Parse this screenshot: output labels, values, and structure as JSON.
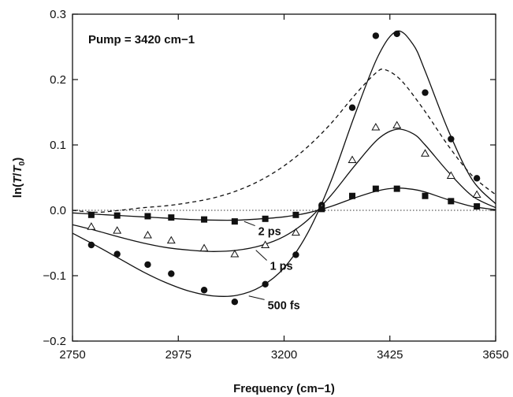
{
  "chart_data": {
    "type": "scatter",
    "xlabel": "Frequency (cm−1)",
    "ylabel_parts": [
      "ln(",
      "T",
      "/",
      "T",
      "0",
      ")"
    ],
    "xlim": [
      2750,
      3650
    ],
    "ylim": [
      -0.2,
      0.3
    ],
    "x_ticks": [
      2750,
      2975,
      3200,
      3425,
      3650
    ],
    "y_ticks": [
      -0.2,
      -0.1,
      0.0,
      0.1,
      0.2,
      0.3
    ],
    "y_tick_labels": [
      "−0.2",
      "−0.1",
      "0.0",
      "0.1",
      "0.2",
      "0.3"
    ],
    "annotation_pump": "Pump = 3420 cm−1",
    "zero_line": true,
    "series": [
      {
        "name": "500 fs",
        "marker": "circle",
        "points": [
          [
            2790,
            -0.053
          ],
          [
            2845,
            -0.067
          ],
          [
            2910,
            -0.083
          ],
          [
            2960,
            -0.097
          ],
          [
            3030,
            -0.122
          ],
          [
            3095,
            -0.14
          ],
          [
            3160,
            -0.113
          ],
          [
            3225,
            -0.068
          ],
          [
            3280,
            0.008
          ],
          [
            3345,
            0.157
          ],
          [
            3395,
            0.267
          ],
          [
            3440,
            0.27
          ],
          [
            3500,
            0.18
          ],
          [
            3555,
            0.109
          ],
          [
            3610,
            0.049
          ]
        ],
        "fit": [
          [
            2750,
            -0.035
          ],
          [
            2800,
            -0.054
          ],
          [
            2850,
            -0.074
          ],
          [
            2900,
            -0.094
          ],
          [
            2950,
            -0.111
          ],
          [
            3000,
            -0.124
          ],
          [
            3050,
            -0.131
          ],
          [
            3100,
            -0.13
          ],
          [
            3150,
            -0.117
          ],
          [
            3200,
            -0.088
          ],
          [
            3250,
            -0.035
          ],
          [
            3300,
            0.045
          ],
          [
            3350,
            0.145
          ],
          [
            3400,
            0.236
          ],
          [
            3440,
            0.274
          ],
          [
            3475,
            0.253
          ],
          [
            3500,
            0.213
          ],
          [
            3550,
            0.121
          ],
          [
            3600,
            0.047
          ],
          [
            3650,
            0.01
          ]
        ]
      },
      {
        "name": "1 ps",
        "marker": "triangle-open",
        "points": [
          [
            2790,
            -0.025
          ],
          [
            2845,
            -0.031
          ],
          [
            2910,
            -0.038
          ],
          [
            2960,
            -0.046
          ],
          [
            3030,
            -0.058
          ],
          [
            3095,
            -0.067
          ],
          [
            3160,
            -0.053
          ],
          [
            3225,
            -0.034
          ],
          [
            3280,
            0.004
          ],
          [
            3345,
            0.077
          ],
          [
            3395,
            0.127
          ],
          [
            3440,
            0.13
          ],
          [
            3500,
            0.087
          ],
          [
            3555,
            0.053
          ],
          [
            3610,
            0.024
          ]
        ],
        "fit": [
          [
            2750,
            -0.022
          ],
          [
            2800,
            -0.031
          ],
          [
            2850,
            -0.041
          ],
          [
            2900,
            -0.05
          ],
          [
            2950,
            -0.057
          ],
          [
            3000,
            -0.061
          ],
          [
            3050,
            -0.063
          ],
          [
            3100,
            -0.061
          ],
          [
            3150,
            -0.054
          ],
          [
            3200,
            -0.04
          ],
          [
            3250,
            -0.015
          ],
          [
            3300,
            0.023
          ],
          [
            3350,
            0.068
          ],
          [
            3400,
            0.109
          ],
          [
            3440,
            0.124
          ],
          [
            3475,
            0.117
          ],
          [
            3500,
            0.1
          ],
          [
            3550,
            0.058
          ],
          [
            3600,
            0.022
          ],
          [
            3650,
            0.004
          ]
        ]
      },
      {
        "name": "2 ps",
        "marker": "square",
        "points": [
          [
            2790,
            -0.007
          ],
          [
            2845,
            -0.008
          ],
          [
            2910,
            -0.009
          ],
          [
            2960,
            -0.011
          ],
          [
            3030,
            -0.014
          ],
          [
            3095,
            -0.017
          ],
          [
            3160,
            -0.013
          ],
          [
            3225,
            -0.007
          ],
          [
            3280,
            0.002
          ],
          [
            3345,
            0.022
          ],
          [
            3395,
            0.033
          ],
          [
            3440,
            0.033
          ],
          [
            3500,
            0.022
          ],
          [
            3555,
            0.014
          ],
          [
            3610,
            0.006
          ]
        ],
        "fit": [
          [
            2750,
            -0.004
          ],
          [
            2800,
            -0.006
          ],
          [
            2850,
            -0.008
          ],
          [
            2900,
            -0.01
          ],
          [
            2950,
            -0.012
          ],
          [
            3000,
            -0.014
          ],
          [
            3050,
            -0.015
          ],
          [
            3100,
            -0.015
          ],
          [
            3150,
            -0.013
          ],
          [
            3200,
            -0.01
          ],
          [
            3250,
            -0.004
          ],
          [
            3300,
            0.006
          ],
          [
            3350,
            0.019
          ],
          [
            3400,
            0.03
          ],
          [
            3440,
            0.034
          ],
          [
            3475,
            0.032
          ],
          [
            3500,
            0.028
          ],
          [
            3550,
            0.016
          ],
          [
            3600,
            0.006
          ],
          [
            3650,
            0.001
          ]
        ]
      },
      {
        "name": "",
        "style": "dashed",
        "fit": [
          [
            2750,
            0.0
          ],
          [
            2800,
            -0.003
          ],
          [
            2850,
            0.0
          ],
          [
            2900,
            0.004
          ],
          [
            2950,
            0.007
          ],
          [
            3000,
            0.012
          ],
          [
            3050,
            0.019
          ],
          [
            3100,
            0.03
          ],
          [
            3150,
            0.046
          ],
          [
            3200,
            0.068
          ],
          [
            3250,
            0.097
          ],
          [
            3300,
            0.133
          ],
          [
            3350,
            0.176
          ],
          [
            3395,
            0.21
          ],
          [
            3415,
            0.215
          ],
          [
            3450,
            0.198
          ],
          [
            3500,
            0.151
          ],
          [
            3550,
            0.098
          ],
          [
            3600,
            0.053
          ],
          [
            3650,
            0.024
          ]
        ]
      }
    ],
    "labels": [
      {
        "text": "2 ps",
        "x": 3145,
        "y": -0.038,
        "leader_to": [
          3115,
          -0.017
        ]
      },
      {
        "text": "1 ps",
        "x": 3170,
        "y": -0.091,
        "leader_to": [
          3140,
          -0.061
        ]
      },
      {
        "text": "500 fs",
        "x": 3165,
        "y": -0.151,
        "leader_to": [
          3125,
          -0.131
        ]
      }
    ]
  }
}
